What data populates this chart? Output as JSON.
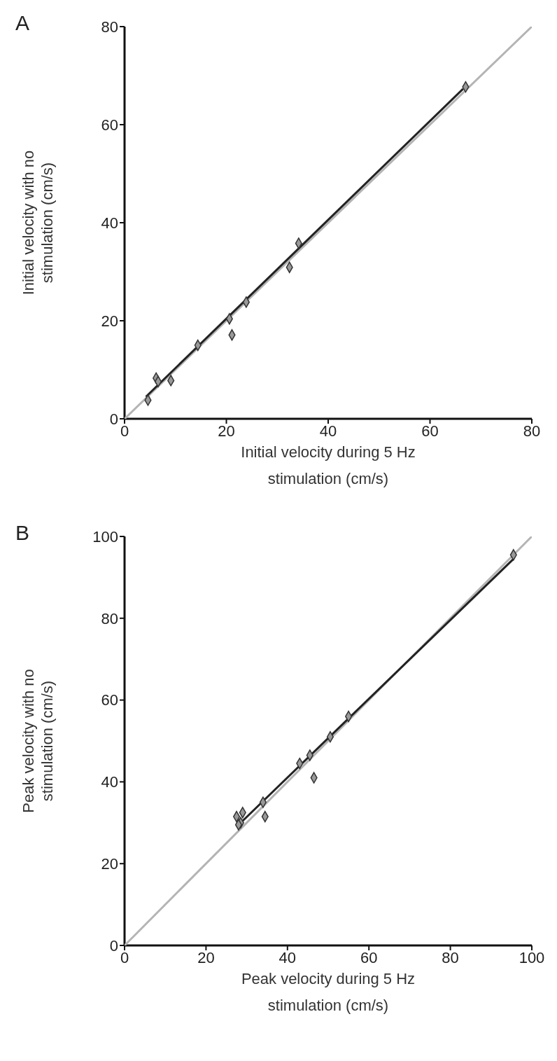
{
  "chart_data": [
    {
      "type": "scatter",
      "annotations": [
        "A"
      ],
      "xlabel": "Initial velocity during 5 Hz stimulation (cm/s)",
      "ylabel": "Initial velocity with no stimulation (cm/s)",
      "xlim": [
        0,
        80
      ],
      "xticks": [
        0,
        20,
        40,
        60,
        80
      ],
      "ylim": [
        0,
        80
      ],
      "yticks": [
        0,
        20,
        40,
        60,
        80
      ],
      "series": [
        {
          "type": "line",
          "color": "#b4b4b4",
          "x": [
            0,
            80
          ],
          "values": [
            0,
            80
          ]
        },
        {
          "type": "line",
          "color": "#222222",
          "x": [
            4.2,
            66.5
          ],
          "values": [
            4.5,
            67.3
          ]
        },
        {
          "type": "scatter",
          "color": "#999999",
          "marker": "diamond",
          "x": [
            4.6,
            6.2,
            6.6,
            9.1,
            14.4,
            20.6,
            21.1,
            23.9,
            32.4,
            34.2,
            67.0
          ],
          "values": [
            3.8,
            8.3,
            7.6,
            7.8,
            15.0,
            20.4,
            17.1,
            23.8,
            30.9,
            35.8,
            67.7
          ]
        }
      ]
    },
    {
      "type": "scatter",
      "annotations": [
        "B"
      ],
      "xlabel": "Peak velocity during 5 Hz stimulation (cm/s)",
      "ylabel": "Peak velocity with no stimulation (cm/s)",
      "xlim": [
        0,
        100
      ],
      "xticks": [
        0,
        20,
        40,
        60,
        80,
        100
      ],
      "ylim": [
        0,
        100
      ],
      "yticks": [
        0,
        20,
        40,
        60,
        80,
        100
      ],
      "series": [
        {
          "type": "line",
          "color": "#b4b4b4",
          "x": [
            0,
            100
          ],
          "values": [
            0,
            100
          ]
        },
        {
          "type": "line",
          "color": "#222222",
          "x": [
            28,
            95.5
          ],
          "values": [
            29.5,
            94.5
          ]
        },
        {
          "type": "scatter",
          "color": "#999999",
          "marker": "diamond",
          "x": [
            27.5,
            28.5,
            29,
            28,
            34,
            34.5,
            43,
            45.5,
            46.5,
            50.5,
            55,
            95.5
          ],
          "values": [
            31.5,
            30,
            32.5,
            29.5,
            35,
            31.5,
            44.5,
            46.5,
            41,
            51,
            56,
            95.5
          ]
        }
      ]
    }
  ]
}
